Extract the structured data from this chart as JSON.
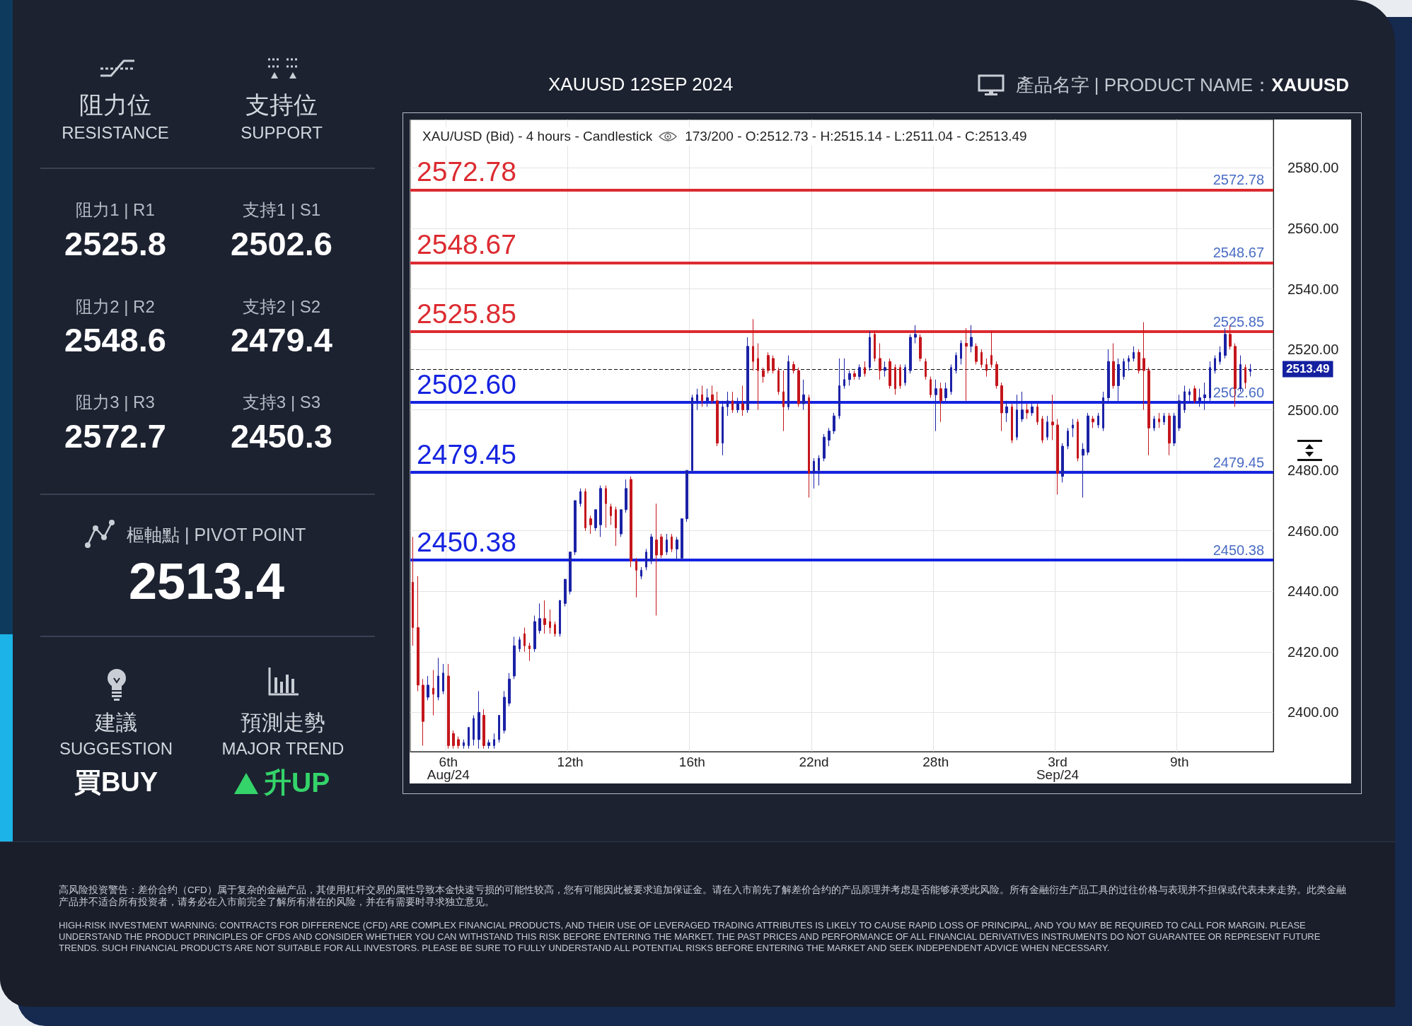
{
  "chart_data": [
    {
      "type": "other",
      "annotations": [
        "阻力位",
        "RESISTANCE",
        "支持位",
        "SUPPORT",
        "阻力1 | R1",
        "2525.8",
        "支持1 | S1",
        "2502.6",
        "阻力2 | R2",
        "2548.6",
        "支持2 | S2",
        "2479.4",
        "阻力3 | R3",
        "2572.7",
        "支持3 | S3",
        "2450.3",
        "樞軸點 | PIVOT POINT",
        "2513.4",
        "建議",
        "SUGGESTION",
        "買BUY",
        "預測走勢",
        "MAJOR TREND",
        "升UP"
      ]
    },
    {
      "type": "candlestick",
      "title": "XAU/USD (Bid) - 4 hours - Candlestick",
      "subtitle": "173/200 - O:2512.73 - H:2515.14 - L:2511.04 - C:2513.49",
      "annotations": [
        "XAUUSD 12SEP 2024",
        "產品名字 | PRODUCT NAME：",
        "XAUUSD"
      ],
      "categories": [
        null,
        null,
        null,
        null,
        null,
        null,
        null,
        "6th\nAug/24",
        null,
        null,
        null,
        null,
        null,
        null,
        null,
        null,
        null,
        null,
        null,
        null,
        null,
        null,
        null,
        null,
        null,
        null,
        null,
        null,
        null,
        null,
        null,
        "12th",
        null,
        null,
        null,
        null,
        null,
        null,
        null,
        null,
        null,
        null,
        null,
        null,
        null,
        null,
        null,
        null,
        null,
        null,
        null,
        null,
        null,
        null,
        null,
        "16th",
        null,
        null,
        null,
        null,
        null,
        null,
        null,
        null,
        null,
        null,
        null,
        null,
        null,
        null,
        null,
        null,
        null,
        null,
        null,
        null,
        null,
        null,
        null,
        "22nd",
        null,
        null,
        null,
        null,
        null,
        null,
        null,
        null,
        null,
        null,
        null,
        null,
        null,
        null,
        null,
        null,
        null,
        null,
        null,
        null,
        null,
        null,
        null,
        "28th",
        null,
        null,
        null,
        null,
        null,
        null,
        null,
        null,
        null,
        null,
        null,
        null,
        null,
        null,
        null,
        null,
        null,
        null,
        null,
        null,
        null,
        null,
        null,
        "3rd\nSep/24",
        null,
        null,
        null,
        null,
        null,
        null,
        null,
        null,
        null,
        null,
        null,
        null,
        null,
        null,
        null,
        null,
        null,
        null,
        null,
        null,
        null,
        null,
        null,
        "9th",
        null,
        null,
        null,
        null,
        null,
        null,
        null,
        null,
        null,
        null,
        null,
        null,
        null,
        null,
        null,
        null,
        null,
        null
      ],
      "ohlc": [
        [
          2443,
          2458,
          2422,
          2428
        ],
        [
          2428,
          2445,
          2407,
          2409
        ],
        [
          2409,
          2411,
          2389,
          2397
        ],
        [
          2405,
          2412,
          2404,
          2409
        ],
        [
          2408,
          2414,
          2399,
          2406
        ],
        [
          2405,
          2418,
          2404,
          2412
        ],
        [
          2407,
          2416,
          2406,
          2413
        ],
        [
          2412,
          2416,
          2388,
          2389
        ],
        [
          2393,
          2394,
          2388,
          2389
        ],
        [
          2391,
          2392,
          2388,
          2389
        ],
        [
          2389,
          2391,
          2388,
          2390
        ],
        [
          2389,
          2395,
          2388,
          2395
        ],
        [
          2391,
          2399,
          2389,
          2398
        ],
        [
          2391,
          2407,
          2388,
          2400
        ],
        [
          2399,
          2401,
          2388,
          2389
        ],
        [
          2389,
          2391,
          2388,
          2390
        ],
        [
          2389,
          2393,
          2388,
          2391
        ],
        [
          2391,
          2399,
          2390,
          2399
        ],
        [
          2394,
          2407,
          2393,
          2405
        ],
        [
          2403,
          2413,
          2402,
          2411
        ],
        [
          2412,
          2425,
          2411,
          2422
        ],
        [
          2421,
          2425,
          2420,
          2424
        ],
        [
          2426,
          2428,
          2420,
          2422
        ],
        [
          2422,
          2423,
          2417,
          2421
        ],
        [
          2421,
          2432,
          2420,
          2430
        ],
        [
          2427,
          2436,
          2426,
          2431
        ],
        [
          2431,
          2437,
          2426,
          2429
        ],
        [
          2430,
          2434,
          2426,
          2428
        ],
        [
          2429,
          2430,
          2425,
          2426
        ],
        [
          2426,
          2437,
          2425,
          2437
        ],
        [
          2436,
          2444,
          2435,
          2444
        ],
        [
          2440,
          2453,
          2439,
          2453
        ],
        [
          2453,
          2470,
          2452,
          2470
        ],
        [
          2469,
          2474,
          2468,
          2473
        ],
        [
          2473,
          2474,
          2460,
          2461
        ],
        [
          2464,
          2465,
          2459,
          2462
        ],
        [
          2461,
          2467,
          2460,
          2467
        ],
        [
          2462,
          2475,
          2458,
          2474
        ],
        [
          2474,
          2475,
          2461,
          2469
        ],
        [
          2468,
          2469,
          2462,
          2465
        ],
        [
          2467,
          2468,
          2455,
          2461
        ],
        [
          2459,
          2467,
          2458,
          2467
        ],
        [
          2467,
          2477,
          2466,
          2474
        ],
        [
          2477,
          2478,
          2448,
          2450
        ],
        [
          2450,
          2451,
          2438,
          2447
        ],
        [
          2445,
          2448,
          2444,
          2447
        ],
        [
          2448,
          2454,
          2447,
          2453
        ],
        [
          2450,
          2459,
          2449,
          2458
        ],
        [
          2457,
          2469,
          2432,
          2452
        ],
        [
          2458,
          2459,
          2451,
          2452
        ],
        [
          2453,
          2459,
          2452,
          2457
        ],
        [
          2458,
          2459,
          2453,
          2454
        ],
        [
          2454,
          2458,
          2450,
          2457
        ],
        [
          2451,
          2464,
          2450,
          2464
        ],
        [
          2464,
          2480,
          2463,
          2480
        ],
        [
          2480,
          2505,
          2479,
          2504
        ],
        [
          2503,
          2507,
          2500,
          2505
        ],
        [
          2505,
          2508,
          2501,
          2503
        ],
        [
          2503,
          2507,
          2501,
          2504
        ],
        [
          2505,
          2508,
          2502,
          2503
        ],
        [
          2503,
          2506,
          2488,
          2489
        ],
        [
          2489,
          2503,
          2485,
          2501
        ],
        [
          2501,
          2506,
          2498,
          2503
        ],
        [
          2503,
          2506,
          2499,
          2500
        ],
        [
          2500,
          2504,
          2499,
          2502
        ],
        [
          2502,
          2508,
          2498,
          2500
        ],
        [
          2500,
          2524,
          2499,
          2521
        ],
        [
          2521,
          2530,
          2513,
          2516
        ],
        [
          2517,
          2522,
          2500,
          2513
        ],
        [
          2513,
          2514,
          2509,
          2511
        ],
        [
          2518,
          2519,
          2512,
          2513
        ],
        [
          2517,
          2518,
          2512,
          2513
        ],
        [
          2513,
          2514,
          2505,
          2506
        ],
        [
          2506,
          2513,
          2493,
          2501
        ],
        [
          2501,
          2518,
          2500,
          2516
        ],
        [
          2515,
          2516,
          2512,
          2513
        ],
        [
          2513,
          2514,
          2501,
          2502
        ],
        [
          2502,
          2510,
          2500,
          2505
        ],
        [
          2504,
          2505,
          2471,
          2479
        ],
        [
          2479,
          2484,
          2474,
          2483
        ],
        [
          2480,
          2485,
          2475,
          2484
        ],
        [
          2484,
          2492,
          2483,
          2491
        ],
        [
          2490,
          2494,
          2488,
          2493
        ],
        [
          2493,
          2499,
          2492,
          2498
        ],
        [
          2498,
          2517,
          2497,
          2508
        ],
        [
          2508,
          2517,
          2507,
          2510
        ],
        [
          2510,
          2513,
          2508,
          2512
        ],
        [
          2512,
          2513,
          2510,
          2511
        ],
        [
          2511,
          2515,
          2510,
          2514
        ],
        [
          2514,
          2516,
          2511,
          2512
        ],
        [
          2514,
          2526,
          2513,
          2524
        ],
        [
          2525,
          2526,
          2516,
          2517
        ],
        [
          2517,
          2522,
          2510,
          2513
        ],
        [
          2513,
          2516,
          2511,
          2514
        ],
        [
          2516,
          2517,
          2507,
          2508
        ],
        [
          2514,
          2515,
          2505,
          2507
        ],
        [
          2514,
          2515,
          2507,
          2508
        ],
        [
          2509,
          2515,
          2508,
          2514
        ],
        [
          2513,
          2525,
          2512,
          2524
        ],
        [
          2524,
          2528,
          2522,
          2525
        ],
        [
          2524,
          2525,
          2516,
          2517
        ],
        [
          2516,
          2517,
          2510,
          2511
        ],
        [
          2510,
          2511,
          2504,
          2505
        ],
        [
          2505,
          2510,
          2493,
          2507
        ],
        [
          2507,
          2509,
          2496,
          2503
        ],
        [
          2504,
          2509,
          2503,
          2507
        ],
        [
          2506,
          2515,
          2505,
          2514
        ],
        [
          2513,
          2519,
          2512,
          2518
        ],
        [
          2517,
          2523,
          2515,
          2522
        ],
        [
          2522,
          2527,
          2503,
          2521
        ],
        [
          2521,
          2528,
          2519,
          2524
        ],
        [
          2521,
          2522,
          2515,
          2516
        ],
        [
          2519,
          2520,
          2514,
          2515
        ],
        [
          2515,
          2517,
          2511,
          2513
        ],
        [
          2518,
          2526,
          2514,
          2515
        ],
        [
          2515,
          2516,
          2507,
          2508
        ],
        [
          2508,
          2509,
          2493,
          2499
        ],
        [
          2499,
          2503,
          2496,
          2501
        ],
        [
          2501,
          2502,
          2489,
          2490
        ],
        [
          2491,
          2505,
          2490,
          2500
        ],
        [
          2497,
          2506,
          2496,
          2500
        ],
        [
          2500,
          2502,
          2497,
          2499
        ],
        [
          2499,
          2502,
          2498,
          2501
        ],
        [
          2501,
          2502,
          2495,
          2496
        ],
        [
          2497,
          2498,
          2489,
          2490
        ],
        [
          2491,
          2498,
          2490,
          2496
        ],
        [
          2496,
          2505,
          2490,
          2495
        ],
        [
          2495,
          2497,
          2472,
          2479
        ],
        [
          2478,
          2489,
          2476,
          2488
        ],
        [
          2488,
          2494,
          2487,
          2493
        ],
        [
          2494,
          2497,
          2491,
          2495
        ],
        [
          2496,
          2497,
          2483,
          2484
        ],
        [
          2485,
          2489,
          2471,
          2487
        ],
        [
          2486,
          2499,
          2485,
          2498
        ],
        [
          2497,
          2498,
          2494,
          2496
        ],
        [
          2495,
          2499,
          2494,
          2498
        ],
        [
          2494,
          2506,
          2493,
          2504
        ],
        [
          2504,
          2520,
          2502,
          2516
        ],
        [
          2516,
          2522,
          2507,
          2508
        ],
        [
          2508,
          2517,
          2503,
          2515
        ],
        [
          2511,
          2517,
          2510,
          2516
        ],
        [
          2516,
          2518,
          2513,
          2517
        ],
        [
          2517,
          2521,
          2516,
          2519
        ],
        [
          2519,
          2520,
          2512,
          2513
        ],
        [
          2517,
          2529,
          2500,
          2513
        ],
        [
          2513,
          2514,
          2485,
          2494
        ],
        [
          2494,
          2498,
          2493,
          2497
        ],
        [
          2497,
          2499,
          2494,
          2496
        ],
        [
          2496,
          2499,
          2495,
          2498
        ],
        [
          2498,
          2499,
          2485,
          2489
        ],
        [
          2489,
          2499,
          2488,
          2498
        ],
        [
          2494,
          2505,
          2493,
          2503
        ],
        [
          2500,
          2508,
          2499,
          2506
        ],
        [
          2505,
          2507,
          2502,
          2506
        ],
        [
          2507,
          2508,
          2502,
          2503
        ],
        [
          2503,
          2507,
          2501,
          2504
        ],
        [
          2504,
          2509,
          2500,
          2505
        ],
        [
          2504,
          2516,
          2503,
          2514
        ],
        [
          2513,
          2518,
          2512,
          2517
        ],
        [
          2516,
          2521,
          2515,
          2519
        ],
        [
          2518,
          2527,
          2517,
          2525
        ],
        [
          2525,
          2528,
          2520,
          2521
        ],
        [
          2521,
          2522,
          2501,
          2507
        ],
        [
          2507,
          2518,
          2506,
          2515
        ],
        [
          2514,
          2515,
          2507,
          2509
        ],
        [
          2512.73,
          2515.14,
          2511.04,
          2513.49
        ],
        null,
        null,
        null,
        null
      ],
      "colors": [
        "#c4161c",
        "#c4161c",
        "#c4161c",
        "#1b22a6",
        "#c4161c",
        "#1b22a6",
        "#1b22a6",
        "#c4161c",
        "#c4161c",
        "#c4161c",
        "#1b22a6",
        "#1b22a6",
        "#1b22a6",
        "#1b22a6",
        "#c4161c",
        "#1b22a6",
        "#1b22a6",
        "#1b22a6",
        "#1b22a6",
        "#1b22a6",
        "#1b22a6",
        "#1b22a6",
        "#c4161c",
        "#c4161c",
        "#1b22a6",
        "#1b22a6",
        "#c4161c",
        "#c4161c",
        "#c4161c",
        "#1b22a6",
        "#1b22a6",
        "#1b22a6",
        "#1b22a6",
        "#1b22a6",
        "#c4161c",
        "#c4161c",
        "#1b22a6",
        "#1b22a6",
        "#c4161c",
        "#c4161c",
        "#c4161c",
        "#1b22a6",
        "#1b22a6",
        "#c4161c",
        "#c4161c",
        "#1b22a6",
        "#1b22a6",
        "#1b22a6",
        "#c4161c",
        "#c4161c",
        "#1b22a6",
        "#c4161c",
        "#1b22a6",
        "#1b22a6",
        "#1b22a6",
        "#1b22a6",
        "#1b22a6",
        "#c4161c",
        "#1b22a6",
        "#c4161c",
        "#c4161c",
        "#1b22a6",
        "#1b22a6",
        "#c4161c",
        "#1b22a6",
        "#c4161c",
        "#1b22a6",
        "#c4161c",
        "#c4161c",
        "#c4161c",
        "#c4161c",
        "#c4161c",
        "#c4161c",
        "#c4161c",
        "#1b22a6",
        "#c4161c",
        "#c4161c",
        "#1b22a6",
        "#c4161c",
        "#1b22a6",
        "#1b22a6",
        "#1b22a6",
        "#1b22a6",
        "#1b22a6",
        "#1b22a6",
        "#1b22a6",
        "#1b22a6",
        "#c4161c",
        "#1b22a6",
        "#c4161c",
        "#1b22a6",
        "#c4161c",
        "#c4161c",
        "#1b22a6",
        "#c4161c",
        "#c4161c",
        "#c4161c",
        "#1b22a6",
        "#1b22a6",
        "#1b22a6",
        "#c4161c",
        "#c4161c",
        "#c4161c",
        "#1b22a6",
        "#c4161c",
        "#1b22a6",
        "#1b22a6",
        "#1b22a6",
        "#1b22a6",
        "#c4161c",
        "#1b22a6",
        "#c4161c",
        "#c4161c",
        "#c4161c",
        "#c4161c",
        "#c4161c",
        "#c4161c",
        "#1b22a6",
        "#c4161c",
        "#1b22a6",
        "#1b22a6",
        "#c4161c",
        "#1b22a6",
        "#c4161c",
        "#c4161c",
        "#1b22a6",
        "#c4161c",
        "#c4161c",
        "#1b22a6",
        "#1b22a6",
        "#1b22a6",
        "#c4161c",
        "#1b22a6",
        "#1b22a6",
        "#c4161c",
        "#1b22a6",
        "#1b22a6",
        "#1b22a6",
        "#c4161c",
        "#1b22a6",
        "#1b22a6",
        "#1b22a6",
        "#1b22a6",
        "#c4161c",
        "#c4161c",
        "#c4161c",
        "#1b22a6",
        "#c4161c",
        "#1b22a6",
        "#c4161c",
        "#1b22a6",
        "#1b22a6",
        "#1b22a6",
        "#1b22a6",
        "#c4161c",
        "#1b22a6",
        "#1b22a6",
        "#1b22a6",
        "#1b22a6",
        "#1b22a6",
        "#1b22a6",
        "#c4161c",
        "#c4161c",
        "#1b22a6",
        "#c4161c",
        "#1b22a6",
        null,
        null,
        null,
        null
      ],
      "ylim": [
        2387,
        2596
      ],
      "yticks": [
        {
          "value": 2400,
          "label": "2400.00"
        },
        {
          "value": 2420,
          "label": "2420.00"
        },
        {
          "value": 2440,
          "label": "2440.00"
        },
        {
          "value": 2460,
          "label": "2460.00"
        },
        {
          "value": 2480,
          "label": "2480.00"
        },
        {
          "value": 2500,
          "label": "2500.00"
        },
        {
          "value": 2520,
          "label": "2520.00"
        },
        {
          "value": 2540,
          "label": "2540.00"
        },
        {
          "value": 2560,
          "label": "2560.00"
        },
        {
          "value": 2580,
          "label": "2580.00"
        }
      ],
      "grid": true,
      "ref_lines": [
        {
          "axis": "y",
          "value": 2572.78,
          "label": "2572.78",
          "color": "#dc2b31"
        },
        {
          "axis": "y",
          "value": 2548.67,
          "label": "2548.67",
          "color": "#dc2b31"
        },
        {
          "axis": "y",
          "value": 2525.85,
          "label": "2525.85",
          "color": "#dc2b31"
        },
        {
          "axis": "y",
          "value": 2502.6,
          "label": "2502.60",
          "color": "#1523e0"
        },
        {
          "axis": "y",
          "value": 2479.45,
          "label": "2479.45",
          "color": "#1523e0"
        },
        {
          "axis": "y",
          "value": 2450.38,
          "label": "2450.38",
          "color": "#1523e0"
        },
        {
          "axis": "y",
          "value": 2513.49,
          "label": "2513.49",
          "color": "#111111",
          "line_style": "dashed"
        }
      ]
    },
    {
      "type": "other",
      "annotations": [
        "高风险投资警告：差价合约（CFD）属于复杂的金融产品，其使用杠杆交易的属性导致本金快速亏损的可能性较高，您有可能因此被要求追加保证金。请在入市前先了解差价合约的产品原理并考虑是否能够承受此风险。所有金融衍生产品工具的过往价格与表现并不担保或代表未来走势。此类金融产品并不适合所有投资者，请务必在入市前完全了解所有潜在的风险，并在有需要时寻求独立意见。",
        "HIGH-RISK INVESTMENT WARNING: CONTRACTS FOR DIFFERENCE (CFD) ARE COMPLEX FINANCIAL PRODUCTS, AND THEIR USE OF LEVERAGED TRADING ATTRIBUTES IS LIKELY TO CAUSE RAPID LOSS OF PRINCIPAL, AND YOU MAY BE REQUIRED TO CALL FOR MARGIN. PLEASE UNDERSTAND THE PRODUCT PRINCIPLES OF CFDS AND CONSIDER WHETHER YOU CAN WITHSTAND THIS RISK BEFORE ENTERING THE MARKET. THE PAST PRICES AND PERFORMANCE OF ALL FINANCIAL DERIVATIVES INSTRUMENTS DO NOT GUARANTEE OR REPRESENT FUTURE TRENDS. SUCH FINANCIAL PRODUCTS ARE NOT SUITABLE FOR ALL INVESTORS. PLEASE BE SURE TO FULLY UNDERSTAND ALL POTENTIAL RISKS BEFORE ENTERING THE MARKET AND SEEK INDEPENDENT ADVICE WHEN NECESSARY."
      ]
    }
  ]
}
